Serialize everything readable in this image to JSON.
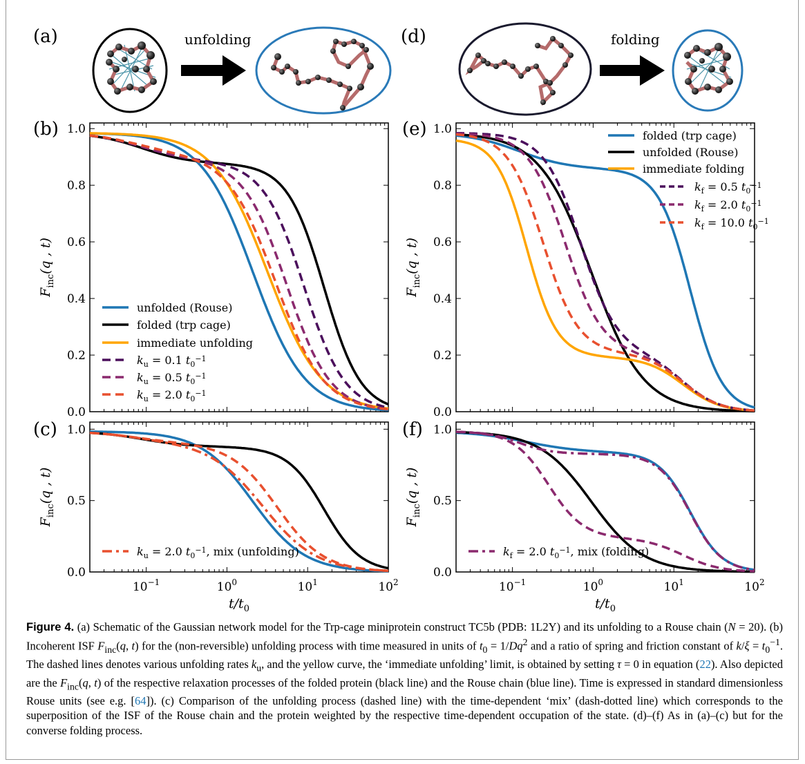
{
  "panel_labels": {
    "a": "(a)",
    "b": "(b)",
    "c": "(c)",
    "d": "(d)",
    "e": "(e)",
    "f": "(f)"
  },
  "schematic": {
    "unfolding": "unfolding",
    "folding": "folding"
  },
  "axes": {
    "ylabel": "F_inc(q , t)",
    "xlabel": "t/t_0",
    "yticks_top": [
      "0.0",
      "0.2",
      "0.4",
      "0.6",
      "0.8",
      "1.0"
    ],
    "yticks_bot": [
      "0.0",
      "0.5",
      "1.0"
    ],
    "xticks": [
      "10^-1",
      "10^0",
      "10^1",
      "10^2"
    ]
  },
  "colors": {
    "blue": "#1f77b4",
    "black": "#000000",
    "orange": "#ffa500",
    "purple_dark": "#4b0f5c",
    "purple_mid": "#8b2a6e",
    "red": "#e8502f"
  },
  "chart_data": [
    {
      "panel": "b",
      "type": "line",
      "xscale": "log",
      "xlim": [
        0.02,
        100
      ],
      "ylim": [
        0,
        1.0
      ],
      "legend_position": "lower-left",
      "series": [
        {
          "name": "unfolded (Rouse)",
          "style": "solid",
          "color": "#1f77b4"
        },
        {
          "name": "folded (trp cage)",
          "style": "solid",
          "color": "#000000"
        },
        {
          "name": "immediate unfolding",
          "style": "solid",
          "color": "#ffa500"
        },
        {
          "name": "k_u = 0.1 t_0^-1",
          "style": "dashed",
          "color": "#4b0f5c"
        },
        {
          "name": "k_u = 0.5 t_0^-1",
          "style": "dashed",
          "color": "#8b2a6e"
        },
        {
          "name": "k_u = 2.0 t_0^-1",
          "style": "dashed",
          "color": "#e8502f"
        }
      ]
    },
    {
      "panel": "c",
      "type": "line",
      "xscale": "log",
      "xlim": [
        0.02,
        100
      ],
      "ylim": [
        0,
        1.0
      ],
      "legend_position": "lower-left",
      "series": [
        {
          "name": "k_u = 2.0 t_0^-1, mix (unfolding)",
          "style": "dash-dot",
          "color": "#e8502f"
        }
      ]
    },
    {
      "panel": "e",
      "type": "line",
      "xscale": "log",
      "xlim": [
        0.02,
        100
      ],
      "ylim": [
        0,
        1.0
      ],
      "legend_position": "top-right",
      "series": [
        {
          "name": "folded (trp cage)",
          "style": "solid",
          "color": "#1f77b4"
        },
        {
          "name": "unfolded (Rouse)",
          "style": "solid",
          "color": "#000000"
        },
        {
          "name": "immediate folding",
          "style": "solid",
          "color": "#ffa500"
        },
        {
          "name": "k_f = 0.5 t_0^-1",
          "style": "dashed",
          "color": "#4b0f5c"
        },
        {
          "name": "k_f = 2.0 t_0^-1",
          "style": "dashed",
          "color": "#8b2a6e"
        },
        {
          "name": "k_f = 10.0 t_0^-1",
          "style": "dashed",
          "color": "#e8502f"
        }
      ]
    },
    {
      "panel": "f",
      "type": "line",
      "xscale": "log",
      "xlim": [
        0.02,
        100
      ],
      "ylim": [
        0,
        1.0
      ],
      "legend_position": "lower-left",
      "series": [
        {
          "name": "k_f = 2.0 t_0^-1, mix (folding)",
          "style": "dash-dot",
          "color": "#8b2a6e"
        }
      ]
    }
  ],
  "caption": {
    "label": "Figure 4.",
    "p1": "(a) Schematic of the Gaussian network model for the Trp-cage miniprotein construct TC5b (PDB: 1L2Y) and its unfolding to a Rouse chain (",
    "p2": "). (b) Incoherent ISF ",
    "p3": " for the (non-reversible) unfolding process with time measured in units of ",
    "p4": " and a ratio of spring and friction constant of ",
    "p5": ". The dashed lines denotes various unfolding rates ",
    "p6": ", and the yellow curve, the ‘immediate unfolding’ limit, is obtained by setting ",
    "p7": " in equation (",
    "ref1": "22",
    "p8": "). Also depicted are the ",
    "p9": " of the respective relaxation processes of the folded protein (black line) and the Rouse chain (blue line). Time is expressed in standard dimensionless Rouse units (see e.g. [",
    "ref2": "64",
    "p10": "]). (c) Comparison of the unfolding process (dashed line) with the time-dependent ‘mix’ (dash-dotted line) which corresponds to the superposition of the ISF of the Rouse chain and the protein weighted by the respective time-dependent occupation of the state. (d)–(f) As in (a)–(c) but for the converse folding process."
  }
}
